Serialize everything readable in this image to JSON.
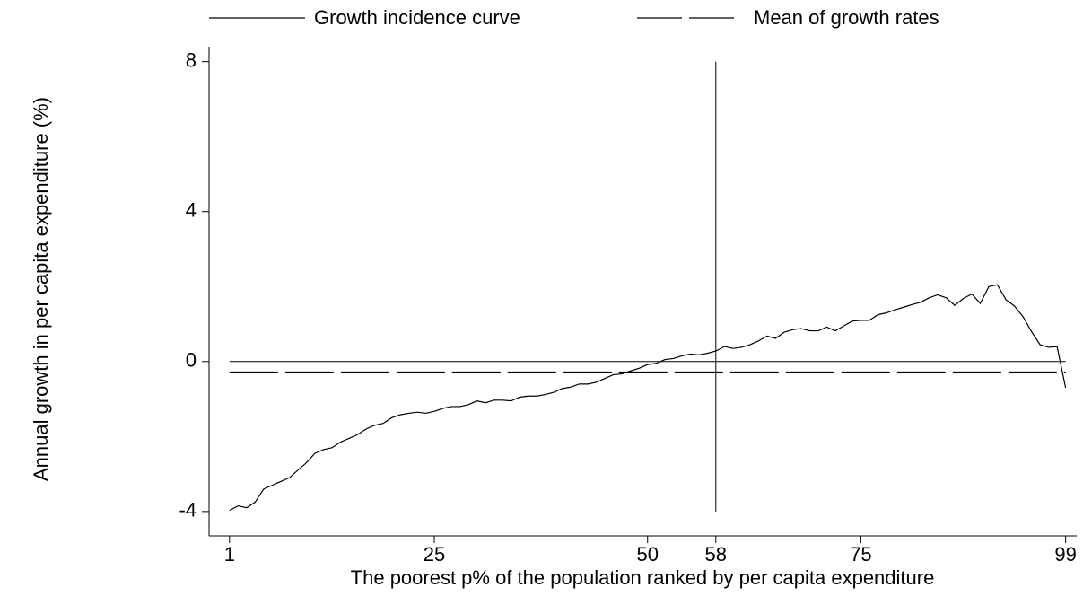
{
  "chart_data": {
    "type": "line",
    "x_label": "The poorest p% of the population ranked by per capita expenditure",
    "y_label": "Annual growth in per capita expenditure (%)",
    "xlim": [
      -1.4,
      100.3
    ],
    "ylim": [
      -4.65,
      8.4
    ],
    "xticks": [
      1,
      25,
      50,
      58,
      75,
      99
    ],
    "yticks": [
      -4,
      0,
      4,
      8
    ],
    "hline": 0,
    "vline": 58,
    "series": [
      {
        "name": "Growth incidence curve",
        "color": "#000000",
        "dash": "none",
        "x": [
          1,
          2,
          3,
          4,
          5,
          6,
          7,
          8,
          9,
          10,
          11,
          12,
          13,
          14,
          15,
          16,
          17,
          18,
          19,
          20,
          21,
          22,
          23,
          24,
          25,
          26,
          27,
          28,
          29,
          30,
          31,
          32,
          33,
          34,
          35,
          36,
          37,
          38,
          39,
          40,
          41,
          42,
          43,
          44,
          45,
          46,
          47,
          48,
          49,
          50,
          51,
          52,
          53,
          54,
          55,
          56,
          57,
          58,
          59,
          60,
          61,
          62,
          63,
          64,
          65,
          66,
          67,
          68,
          69,
          70,
          71,
          72,
          73,
          74,
          75,
          76,
          77,
          78,
          79,
          80,
          81,
          82,
          83,
          84,
          85,
          86,
          87,
          88,
          89,
          90,
          91,
          92,
          93,
          94,
          95,
          96,
          97,
          98,
          99
        ],
        "values": [
          -3.97,
          -3.85,
          -3.9,
          -3.75,
          -3.4,
          -3.3,
          -3.2,
          -3.1,
          -2.9,
          -2.7,
          -2.45,
          -2.35,
          -2.3,
          -2.15,
          -2.05,
          -1.95,
          -1.8,
          -1.7,
          -1.65,
          -1.5,
          -1.42,
          -1.38,
          -1.35,
          -1.38,
          -1.33,
          -1.25,
          -1.2,
          -1.2,
          -1.15,
          -1.05,
          -1.1,
          -1.03,
          -1.03,
          -1.05,
          -0.95,
          -0.92,
          -0.92,
          -0.88,
          -0.82,
          -0.72,
          -0.68,
          -0.6,
          -0.6,
          -0.55,
          -0.45,
          -0.35,
          -0.33,
          -0.25,
          -0.18,
          -0.08,
          -0.05,
          0.05,
          0.08,
          0.15,
          0.2,
          0.18,
          0.22,
          0.28,
          0.4,
          0.35,
          0.38,
          0.45,
          0.55,
          0.68,
          0.62,
          0.78,
          0.85,
          0.88,
          0.82,
          0.82,
          0.92,
          0.82,
          0.95,
          1.08,
          1.1,
          1.1,
          1.25,
          1.3,
          1.38,
          1.45,
          1.52,
          1.58,
          1.7,
          1.78,
          1.7,
          1.5,
          1.68,
          1.8,
          1.55,
          2.0,
          2.05,
          1.65,
          1.48,
          1.2,
          0.8,
          0.45,
          0.38,
          0.4,
          -0.7
        ]
      },
      {
        "name": "Mean of growth rates",
        "color": "#000000",
        "dash": "dashed",
        "x": [
          1,
          99
        ],
        "values": [
          -0.28,
          -0.28
        ]
      }
    ]
  }
}
